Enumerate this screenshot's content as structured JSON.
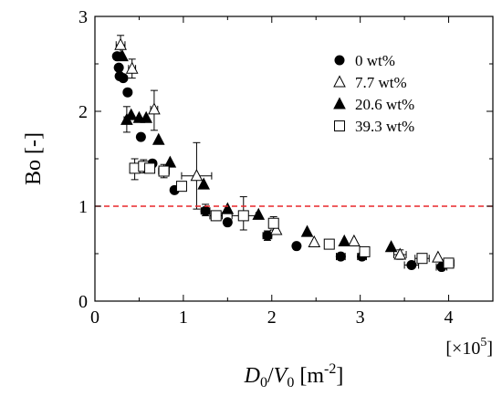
{
  "chart_data": {
    "type": "scatter",
    "xlabel_main": "D",
    "xlabel_sub": "0",
    "xlabel_slash": "/",
    "xlabel_main2": "V",
    "xlabel_sub2": "0",
    "xlabel_unit": " [m",
    "xlabel_exp": "-2",
    "xlabel_close": "]",
    "x_multiplier": "[×10",
    "x_multiplier_exp": "5",
    "x_multiplier_close": "]",
    "ylabel": "Bo [-]",
    "xlim": [
      0,
      4.5
    ],
    "ylim": [
      0,
      3
    ],
    "x_ticks": [
      "0",
      "1",
      "2",
      "3",
      "4"
    ],
    "y_ticks": [
      "0",
      "1",
      "2",
      "3"
    ],
    "reference_line": {
      "y": 1.0,
      "color": "#e8262a",
      "style": "dashed"
    },
    "legend_position": "top-right",
    "series": [
      {
        "name": "0 wt%",
        "marker": "circle-filled",
        "points": [
          {
            "x": 0.25,
            "y": 2.58
          },
          {
            "x": 0.27,
            "y": 2.46
          },
          {
            "x": 0.28,
            "y": 2.37
          },
          {
            "x": 0.32,
            "y": 2.35
          },
          {
            "x": 0.37,
            "y": 2.2
          },
          {
            "x": 0.52,
            "y": 1.73
          },
          {
            "x": 0.65,
            "y": 1.45
          },
          {
            "x": 0.9,
            "y": 1.17
          },
          {
            "x": 1.25,
            "y": 0.95
          },
          {
            "x": 1.5,
            "y": 0.83
          },
          {
            "x": 1.95,
            "y": 0.69
          },
          {
            "x": 2.28,
            "y": 0.58
          },
          {
            "x": 2.78,
            "y": 0.47
          },
          {
            "x": 3.02,
            "y": 0.47
          },
          {
            "x": 3.58,
            "y": 0.38
          },
          {
            "x": 3.92,
            "y": 0.36
          }
        ]
      },
      {
        "name": "7.7 wt%",
        "marker": "triangle-open",
        "points": [
          {
            "x": 0.29,
            "y": 2.7
          },
          {
            "x": 0.42,
            "y": 2.45
          },
          {
            "x": 0.67,
            "y": 2.02
          },
          {
            "x": 1.15,
            "y": 1.32
          },
          {
            "x": 2.05,
            "y": 0.75
          },
          {
            "x": 2.48,
            "y": 0.62
          },
          {
            "x": 2.93,
            "y": 0.63
          },
          {
            "x": 3.45,
            "y": 0.49
          },
          {
            "x": 3.88,
            "y": 0.46
          }
        ]
      },
      {
        "name": "20.6 wt%",
        "marker": "triangle-filled",
        "points": [
          {
            "x": 0.31,
            "y": 2.58
          },
          {
            "x": 0.36,
            "y": 1.91
          },
          {
            "x": 0.41,
            "y": 1.96
          },
          {
            "x": 0.5,
            "y": 1.93
          },
          {
            "x": 0.58,
            "y": 1.93
          },
          {
            "x": 0.72,
            "y": 1.7
          },
          {
            "x": 0.85,
            "y": 1.46
          },
          {
            "x": 1.23,
            "y": 1.23
          },
          {
            "x": 1.5,
            "y": 0.97
          },
          {
            "x": 1.85,
            "y": 0.91
          },
          {
            "x": 2.4,
            "y": 0.73
          },
          {
            "x": 2.82,
            "y": 0.63
          },
          {
            "x": 3.35,
            "y": 0.57
          }
        ]
      },
      {
        "name": "39.3 wt%",
        "marker": "square-open",
        "points": [
          {
            "x": 0.45,
            "y": 1.4
          },
          {
            "x": 0.55,
            "y": 1.42
          },
          {
            "x": 0.62,
            "y": 1.4
          },
          {
            "x": 0.78,
            "y": 1.37
          },
          {
            "x": 0.98,
            "y": 1.21
          },
          {
            "x": 1.37,
            "y": 0.9
          },
          {
            "x": 1.68,
            "y": 0.9
          },
          {
            "x": 2.02,
            "y": 0.82
          },
          {
            "x": 2.65,
            "y": 0.6
          },
          {
            "x": 3.05,
            "y": 0.52
          },
          {
            "x": 3.7,
            "y": 0.45
          },
          {
            "x": 4.0,
            "y": 0.4
          }
        ]
      }
    ],
    "error_bars": [
      {
        "x": 0.29,
        "y": 2.7,
        "ylo": 2.58,
        "yhi": 2.8,
        "xlo": 0.24,
        "xhi": 0.34
      },
      {
        "x": 0.42,
        "y": 2.45,
        "ylo": 2.35,
        "yhi": 2.55,
        "xlo": 0.38,
        "xhi": 0.46
      },
      {
        "x": 0.67,
        "y": 2.02,
        "ylo": 1.8,
        "yhi": 2.22,
        "xlo": 0.63,
        "xhi": 0.71
      },
      {
        "x": 0.36,
        "y": 1.91,
        "ylo": 1.78,
        "yhi": 2.05,
        "xlo": 0.33,
        "xhi": 0.39
      },
      {
        "x": 0.45,
        "y": 1.4,
        "ylo": 1.28,
        "yhi": 1.5,
        "xlo": 0.4,
        "xhi": 0.5
      },
      {
        "x": 0.55,
        "y": 1.42,
        "ylo": 1.35,
        "yhi": 1.49,
        "xlo": 0.5,
        "xhi": 0.6
      },
      {
        "x": 0.78,
        "y": 1.37,
        "ylo": 1.3,
        "yhi": 1.44,
        "xlo": 0.72,
        "xhi": 0.84
      },
      {
        "x": 1.15,
        "y": 1.32,
        "ylo": 0.97,
        "yhi": 1.67,
        "xlo": 0.98,
        "xhi": 1.32
      },
      {
        "x": 1.25,
        "y": 0.95,
        "ylo": 0.9,
        "yhi": 1.02,
        "xlo": 1.2,
        "xhi": 1.3
      },
      {
        "x": 1.68,
        "y": 0.9,
        "ylo": 0.75,
        "yhi": 1.1,
        "xlo": 1.55,
        "xhi": 1.82
      },
      {
        "x": 1.37,
        "y": 0.9,
        "ylo": 0.85,
        "yhi": 0.95,
        "xlo": 1.3,
        "xhi": 1.44
      },
      {
        "x": 2.02,
        "y": 0.82,
        "ylo": 0.75,
        "yhi": 0.89,
        "xlo": 1.97,
        "xhi": 2.07
      },
      {
        "x": 1.95,
        "y": 0.69,
        "ylo": 0.64,
        "yhi": 0.74,
        "xlo": 1.9,
        "xhi": 2.0
      },
      {
        "x": 2.78,
        "y": 0.47,
        "ylo": 0.44,
        "yhi": 0.5,
        "xlo": 2.73,
        "xhi": 2.83
      },
      {
        "x": 3.02,
        "y": 0.47,
        "ylo": 0.44,
        "yhi": 0.5,
        "xlo": 2.97,
        "xhi": 3.07
      },
      {
        "x": 3.45,
        "y": 0.49,
        "ylo": 0.44,
        "yhi": 0.54,
        "xlo": 3.38,
        "xhi": 3.52
      },
      {
        "x": 3.58,
        "y": 0.38,
        "ylo": 0.36,
        "yhi": 0.4,
        "xlo": 3.5,
        "xhi": 3.66
      },
      {
        "x": 3.7,
        "y": 0.45,
        "ylo": 0.41,
        "yhi": 0.49,
        "xlo": 3.62,
        "xhi": 3.78
      },
      {
        "x": 3.92,
        "y": 0.36,
        "ylo": 0.34,
        "yhi": 0.38,
        "xlo": 3.86,
        "xhi": 3.98
      },
      {
        "x": 4.0,
        "y": 0.4,
        "ylo": 0.37,
        "yhi": 0.43,
        "xlo": 3.94,
        "xhi": 4.06
      }
    ]
  }
}
